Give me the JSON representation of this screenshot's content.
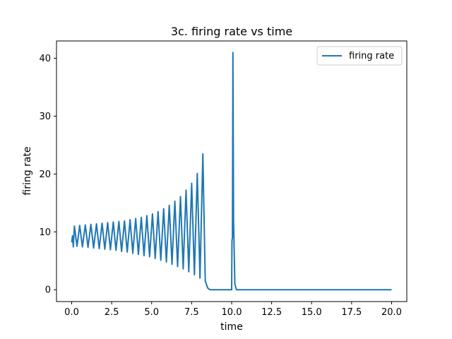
{
  "chart_data": {
    "type": "line",
    "title": "3c. firing rate vs time",
    "xlabel": "time",
    "ylabel": "firing rate",
    "xlim": [
      -0.95,
      20.95
    ],
    "ylim": [
      -2.05,
      43.0
    ],
    "xticks": [
      0.0,
      2.5,
      5.0,
      7.5,
      10.0,
      12.5,
      15.0,
      17.5,
      20.0
    ],
    "xtick_labels": [
      "0.0",
      "2.5",
      "5.0",
      "7.5",
      "10.0",
      "12.5",
      "15.0",
      "17.5",
      "20.0"
    ],
    "yticks": [
      0,
      10,
      20,
      30,
      40
    ],
    "ytick_labels": [
      "0",
      "10",
      "20",
      "30",
      "40"
    ],
    "grid": false,
    "legend_position": "top-right",
    "series": [
      {
        "name": "firing rate",
        "color": "#1f77b4",
        "description_points": {
          "oscillation_peaks_t": [
            0.17,
            0.5,
            0.85,
            1.2,
            1.55,
            1.9,
            2.25,
            2.6,
            2.95,
            3.3,
            3.65,
            4.0,
            4.35,
            4.7,
            5.05,
            5.4,
            5.75,
            6.1,
            6.45,
            6.8,
            7.15,
            7.5,
            7.85,
            8.2
          ],
          "oscillation_peaks_y": [
            11.0,
            11.1,
            11.2,
            11.3,
            11.4,
            11.5,
            11.6,
            11.7,
            11.8,
            11.9,
            12.1,
            12.3,
            12.5,
            12.8,
            13.1,
            13.5,
            14.0,
            14.6,
            15.3,
            16.1,
            17.2,
            18.4,
            20.1,
            23.5
          ],
          "oscillation_troughs_y": [
            7.5,
            7.4,
            7.3,
            7.2,
            7.1,
            7.0,
            6.9,
            6.8,
            6.6,
            6.5,
            6.3,
            6.1,
            5.9,
            5.7,
            5.4,
            5.1,
            4.8,
            4.4,
            4.0,
            3.6,
            3.1,
            2.6,
            2.0,
            1.5
          ]
        },
        "x": [
          0.0,
          0.05,
          0.1,
          0.17,
          0.33,
          0.5,
          0.67,
          0.85,
          1.02,
          1.2,
          1.37,
          1.55,
          1.72,
          1.9,
          2.07,
          2.25,
          2.42,
          2.6,
          2.77,
          2.95,
          3.12,
          3.3,
          3.47,
          3.65,
          3.82,
          4.0,
          4.17,
          4.35,
          4.52,
          4.7,
          4.87,
          5.05,
          5.22,
          5.4,
          5.57,
          5.75,
          5.92,
          6.1,
          6.27,
          6.45,
          6.62,
          6.8,
          6.97,
          7.15,
          7.32,
          7.5,
          7.67,
          7.85,
          8.02,
          8.2,
          8.35,
          8.5,
          8.65,
          10.0,
          10.02,
          10.05,
          10.08,
          10.12,
          10.2,
          10.3,
          20.0
        ],
        "y": [
          8.2,
          9.3,
          7.4,
          11.0,
          7.5,
          11.1,
          7.4,
          11.2,
          7.3,
          11.3,
          7.2,
          11.4,
          7.1,
          11.5,
          7.0,
          11.6,
          6.9,
          11.7,
          6.8,
          11.8,
          6.6,
          11.9,
          6.5,
          12.1,
          6.3,
          12.3,
          6.1,
          12.5,
          5.9,
          12.8,
          5.7,
          13.1,
          5.4,
          13.5,
          5.1,
          14.0,
          4.8,
          14.6,
          4.4,
          15.3,
          4.0,
          16.1,
          3.6,
          17.2,
          3.1,
          18.4,
          2.6,
          20.1,
          2.0,
          23.5,
          1.5,
          0.3,
          0.0,
          0.0,
          8.5,
          9.0,
          41.0,
          12.0,
          1.0,
          0.0,
          0.0
        ]
      }
    ]
  }
}
